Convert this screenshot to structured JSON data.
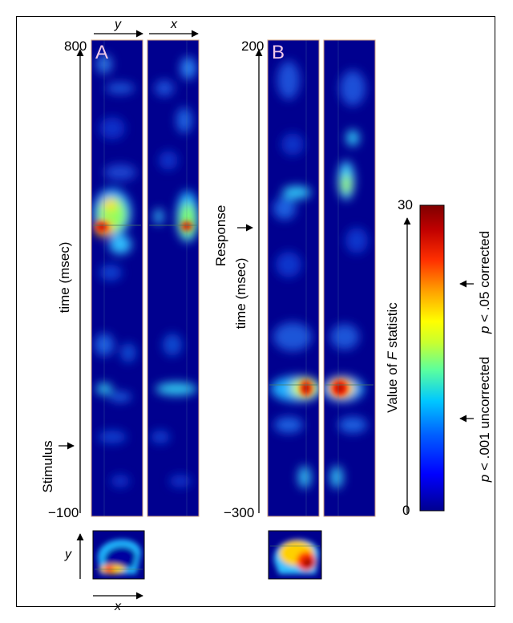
{
  "panel_a": {
    "letter": "A",
    "axis_top_left": "y",
    "axis_top_right": "x",
    "tick_top": "800",
    "tick_bottom": "−100",
    "time_label": "time (msec)",
    "event_label": "Stimulus",
    "inset_y": "y",
    "inset_x": "x"
  },
  "panel_b": {
    "letter": "B",
    "tick_top": "200",
    "tick_bottom": "−300",
    "time_label": "time (msec)",
    "event_label": "Response"
  },
  "colorbar": {
    "max": "30",
    "min": "0",
    "label_prefix": "Value of ",
    "label_italic": "F",
    "label_suffix": " statistic",
    "thr_corrected_p": "p",
    "thr_corrected_rest": " < .05 corrected",
    "thr_uncorrected_p": "p",
    "thr_uncorrected_rest": " < .001 uncorrected",
    "stops": [
      "#00008f",
      "#0000ff",
      "#0060ff",
      "#00c8ff",
      "#5aff9f",
      "#c8ff30",
      "#ffff00",
      "#ffa000",
      "#ff3000",
      "#c00000",
      "#7f0000"
    ]
  }
}
